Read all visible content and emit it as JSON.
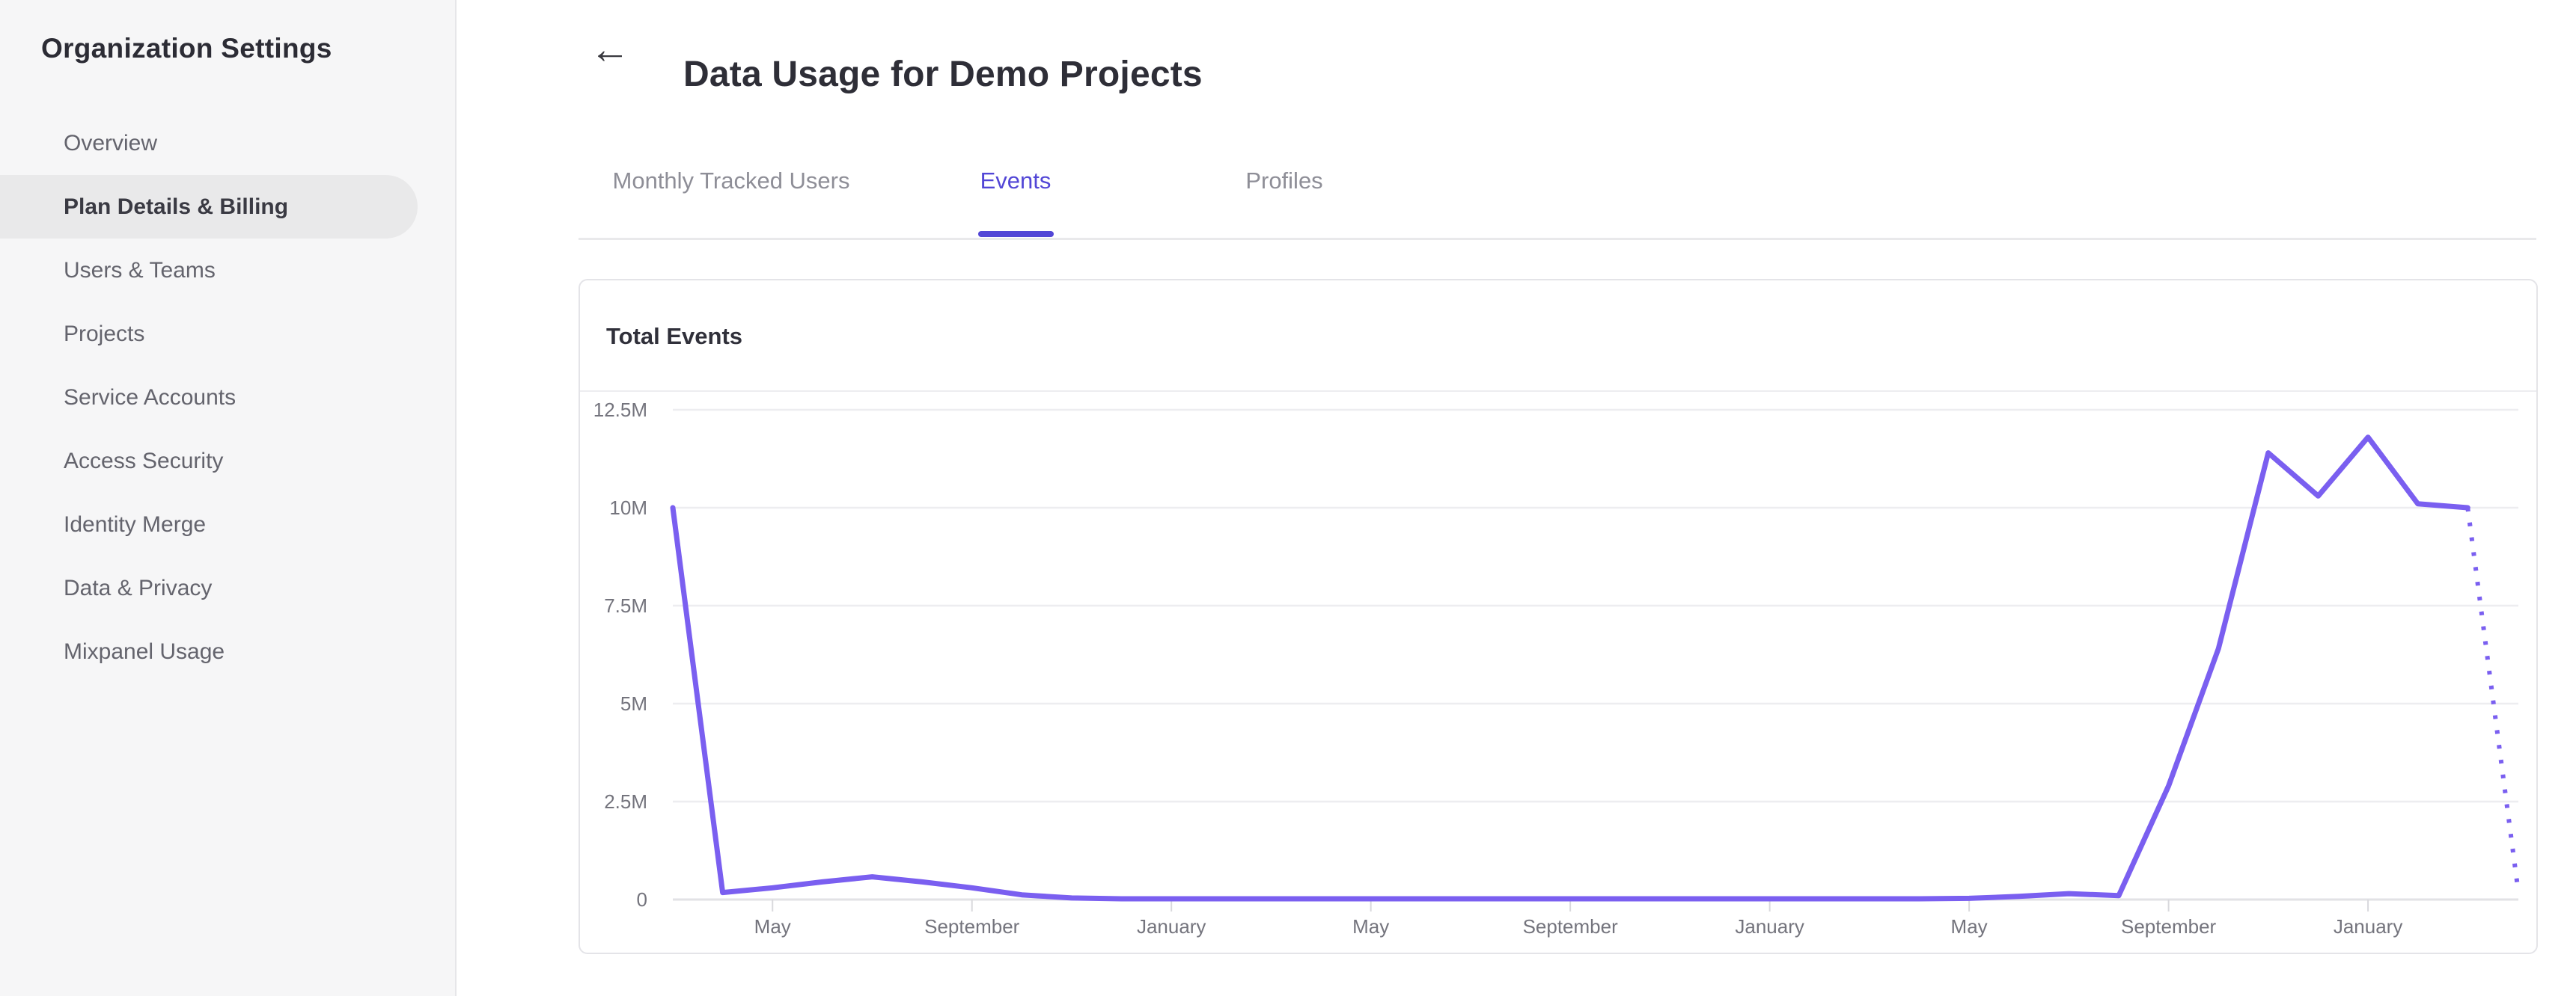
{
  "sidebar": {
    "title": "Organization Settings",
    "items": [
      {
        "label": "Overview",
        "active": false
      },
      {
        "label": "Plan Details & Billing",
        "active": true
      },
      {
        "label": "Users & Teams",
        "active": false
      },
      {
        "label": "Projects",
        "active": false
      },
      {
        "label": "Service Accounts",
        "active": false
      },
      {
        "label": "Access Security",
        "active": false
      },
      {
        "label": "Identity Merge",
        "active": false
      },
      {
        "label": "Data & Privacy",
        "active": false
      },
      {
        "label": "Mixpanel Usage",
        "active": false
      }
    ]
  },
  "header": {
    "back_icon": "←",
    "title": "Data Usage for Demo Projects"
  },
  "tabs": [
    {
      "label": "Monthly Tracked Users",
      "active": false
    },
    {
      "label": "Events",
      "active": true
    },
    {
      "label": "Profiles",
      "active": false
    }
  ],
  "card": {
    "title": "Total Events"
  },
  "colors": {
    "accent_purple": "#5246d6",
    "line_purple": "#7a5ff0",
    "sidebar_bg": "#f6f6f7",
    "active_item_bg": "#e9e9ea",
    "gridline": "#ededf0",
    "zero_line": "#e2e2e5",
    "axis_label": "#74747d"
  },
  "chart_data": {
    "type": "line",
    "title": "Total Events",
    "y_unit": "events",
    "grid": "horizontal",
    "legend": "none",
    "ylim_millions": [
      0,
      12.5
    ],
    "y_ticks": [
      {
        "label": "12.5M",
        "value": 12.5
      },
      {
        "label": "10M",
        "value": 10
      },
      {
        "label": "7.5M",
        "value": 7.5
      },
      {
        "label": "5M",
        "value": 5
      },
      {
        "label": "2.5M",
        "value": 2.5
      },
      {
        "label": "0",
        "value": 0
      }
    ],
    "x_cadence": "monthly",
    "x_ticks": [
      {
        "label": "May",
        "index": 2
      },
      {
        "label": "September",
        "index": 6
      },
      {
        "label": "January",
        "index": 10
      },
      {
        "label": "May",
        "index": 14
      },
      {
        "label": "September",
        "index": 18
      },
      {
        "label": "January",
        "index": 22
      },
      {
        "label": "May",
        "index": 26
      },
      {
        "label": "September",
        "index": 30
      },
      {
        "label": "January",
        "index": 34
      }
    ],
    "series": [
      {
        "name": "Total Events",
        "color": "#7a5ff0",
        "values_millions": [
          10,
          0.18,
          0.3,
          0.45,
          0.58,
          0.45,
          0.3,
          0.12,
          0.04,
          0.02,
          0.02,
          0.02,
          0.02,
          0.02,
          0.02,
          0.02,
          0.02,
          0.02,
          0.02,
          0.02,
          0.02,
          0.02,
          0.02,
          0.02,
          0.02,
          0.02,
          0.03,
          0.08,
          0.15,
          0.1,
          2.9,
          6.4,
          11.4,
          10.3,
          11.8,
          10.1,
          10,
          0.35
        ]
      }
    ],
    "dashed_from_index": 36
  }
}
